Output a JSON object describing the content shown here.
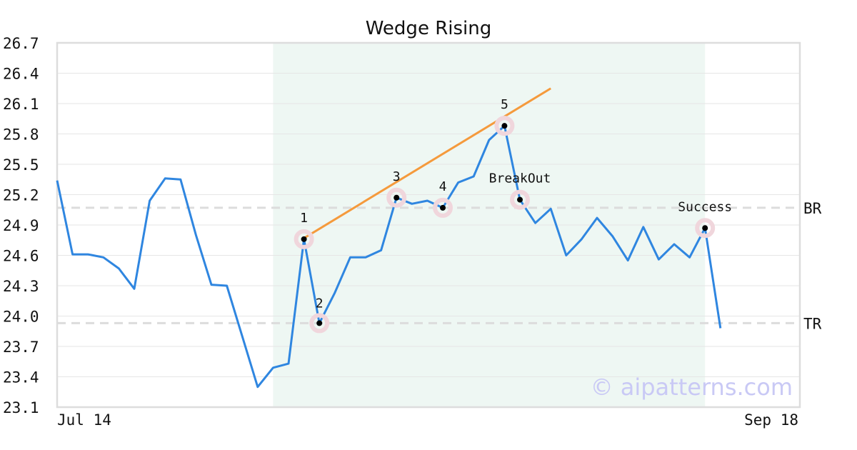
{
  "chart_data": {
    "type": "line",
    "title": "Wedge Rising",
    "xlabel": "",
    "ylabel": "",
    "x_tick_labels": [
      "Jul 14",
      "Sep 18"
    ],
    "yticks": [
      "23.1",
      "23.4",
      "23.7",
      "24.0",
      "24.3",
      "24.6",
      "24.9",
      "25.2",
      "25.5",
      "25.8",
      "26.1",
      "26.4",
      "26.7"
    ],
    "ylim": [
      23.1,
      26.7
    ],
    "grid": true,
    "series": [
      {
        "values": [
          25.34,
          24.61,
          24.61,
          24.58,
          24.47,
          24.27,
          25.14,
          25.36,
          25.35,
          24.8,
          24.31,
          24.3,
          23.8,
          23.3,
          23.49,
          23.53,
          24.76,
          23.93,
          24.23,
          24.58,
          24.58,
          24.65,
          25.17,
          25.11,
          25.14,
          25.07,
          25.32,
          25.38,
          25.74,
          25.88,
          25.15,
          24.92,
          25.06,
          24.6,
          24.76,
          24.97,
          24.79,
          24.55,
          24.88,
          24.56,
          24.71,
          24.58,
          24.87,
          23.88
        ],
        "color": "#2f86e0"
      }
    ],
    "wedge_line": {
      "from_index": 16,
      "from_value": 24.77,
      "to_index": 32,
      "to_value": 26.25,
      "color": "#f59a3c"
    },
    "levels": [
      {
        "label": "BR",
        "value": 25.07
      },
      {
        "label": "TR",
        "value": 23.93
      }
    ],
    "highlight_range": {
      "from_index": 14,
      "to_index": 42,
      "color": "#eef7f3"
    },
    "points": [
      {
        "label": "1",
        "index": 16,
        "value": 24.76
      },
      {
        "label": "2",
        "index": 17,
        "value": 23.93
      },
      {
        "label": "3",
        "index": 22,
        "value": 25.17
      },
      {
        "label": "4",
        "index": 25,
        "value": 25.07
      },
      {
        "label": "5",
        "index": 29,
        "value": 25.88
      },
      {
        "label": "BreakOut",
        "index": 30,
        "value": 25.15
      },
      {
        "label": "Success",
        "index": 42,
        "value": 24.87
      }
    ],
    "watermark": "© aipatterns.com"
  }
}
